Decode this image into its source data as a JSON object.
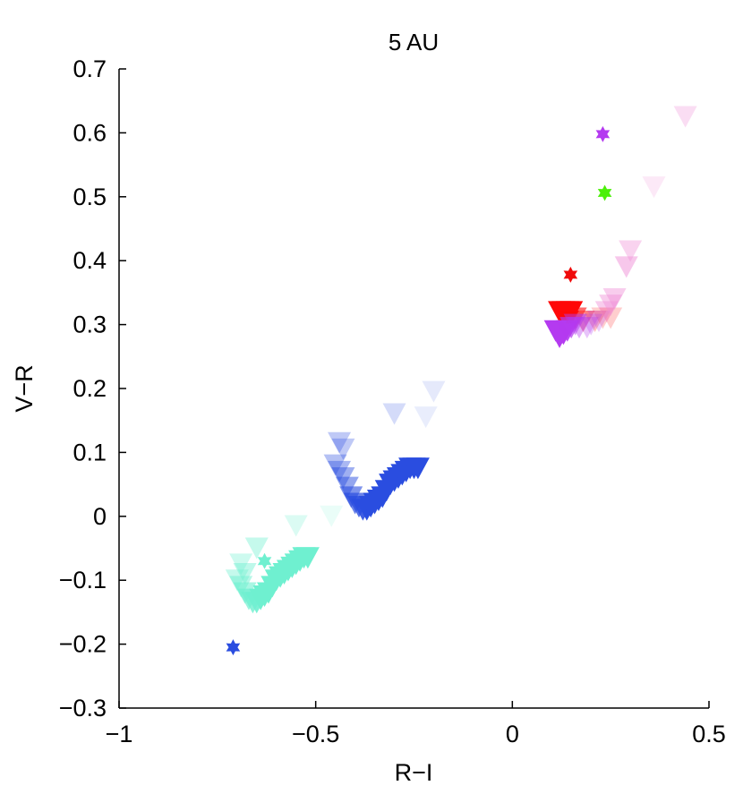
{
  "chart_data": {
    "type": "scatter",
    "title": "5 AU",
    "xlabel": "R−I",
    "ylabel": "V−R",
    "xlim": [
      -1,
      0.5
    ],
    "ylim": [
      -0.3,
      0.7
    ],
    "xticks": [
      -1,
      -0.5,
      0,
      0.5
    ],
    "xtick_labels": [
      "−1",
      "−0.5",
      "0",
      "0.5"
    ],
    "yticks": [
      -0.3,
      -0.2,
      -0.1,
      0,
      0.1,
      0.2,
      0.3,
      0.4,
      0.5,
      0.6,
      0.7
    ],
    "ytick_labels": [
      "−0.3",
      "−0.2",
      "−0.1",
      "0",
      "0.1",
      "0.2",
      "0.3",
      "0.4",
      "0.5",
      "0.6",
      "0.7"
    ],
    "grid": false,
    "series": [
      {
        "marker": "triangle-down",
        "color": "#2a4de0",
        "points": [
          {
            "x": -0.44,
            "y": 0.115,
            "a": 0.3
          },
          {
            "x": -0.43,
            "y": 0.105,
            "a": 0.3
          },
          {
            "x": -0.45,
            "y": 0.08,
            "a": 0.35
          },
          {
            "x": -0.44,
            "y": 0.07,
            "a": 0.4
          },
          {
            "x": -0.43,
            "y": 0.06,
            "a": 0.45
          },
          {
            "x": -0.42,
            "y": 0.045,
            "a": 0.5
          },
          {
            "x": -0.41,
            "y": 0.03,
            "a": 0.6
          },
          {
            "x": -0.4,
            "y": 0.02,
            "a": 0.7
          },
          {
            "x": -0.39,
            "y": 0.015,
            "a": 0.8
          },
          {
            "x": -0.38,
            "y": 0.01,
            "a": 0.9
          },
          {
            "x": -0.37,
            "y": 0.01,
            "a": 1
          },
          {
            "x": -0.36,
            "y": 0.015,
            "a": 1
          },
          {
            "x": -0.35,
            "y": 0.02,
            "a": 1
          },
          {
            "x": -0.34,
            "y": 0.025,
            "a": 1
          },
          {
            "x": -0.33,
            "y": 0.03,
            "a": 1
          },
          {
            "x": -0.32,
            "y": 0.04,
            "a": 1
          },
          {
            "x": -0.31,
            "y": 0.05,
            "a": 1
          },
          {
            "x": -0.3,
            "y": 0.055,
            "a": 1
          },
          {
            "x": -0.29,
            "y": 0.06,
            "a": 1
          },
          {
            "x": -0.28,
            "y": 0.065,
            "a": 1
          },
          {
            "x": -0.27,
            "y": 0.07,
            "a": 1
          },
          {
            "x": -0.26,
            "y": 0.075,
            "a": 1
          },
          {
            "x": -0.25,
            "y": 0.075,
            "a": 1
          },
          {
            "x": -0.24,
            "y": 0.075,
            "a": 1
          },
          {
            "x": -0.3,
            "y": 0.16,
            "a": 0.2
          },
          {
            "x": -0.22,
            "y": 0.155,
            "a": 0.1
          },
          {
            "x": -0.2,
            "y": 0.195,
            "a": 0.12
          }
        ]
      },
      {
        "marker": "triangle-down",
        "color": "#6ff0d0",
        "points": [
          {
            "x": -0.65,
            "y": -0.05,
            "a": 0.4
          },
          {
            "x": -0.69,
            "y": -0.075,
            "a": 0.35
          },
          {
            "x": -0.68,
            "y": -0.09,
            "a": 0.45
          },
          {
            "x": -0.7,
            "y": -0.1,
            "a": 0.4
          },
          {
            "x": -0.69,
            "y": -0.11,
            "a": 0.5
          },
          {
            "x": -0.68,
            "y": -0.12,
            "a": 0.6
          },
          {
            "x": -0.67,
            "y": -0.13,
            "a": 0.7
          },
          {
            "x": -0.66,
            "y": -0.135,
            "a": 0.8
          },
          {
            "x": -0.65,
            "y": -0.135,
            "a": 0.9
          },
          {
            "x": -0.64,
            "y": -0.13,
            "a": 1
          },
          {
            "x": -0.63,
            "y": -0.125,
            "a": 1
          },
          {
            "x": -0.62,
            "y": -0.12,
            "a": 1
          },
          {
            "x": -0.61,
            "y": -0.11,
            "a": 1
          },
          {
            "x": -0.6,
            "y": -0.1,
            "a": 1
          },
          {
            "x": -0.59,
            "y": -0.095,
            "a": 1
          },
          {
            "x": -0.58,
            "y": -0.09,
            "a": 1
          },
          {
            "x": -0.57,
            "y": -0.085,
            "a": 1
          },
          {
            "x": -0.56,
            "y": -0.08,
            "a": 1
          },
          {
            "x": -0.55,
            "y": -0.075,
            "a": 1
          },
          {
            "x": -0.54,
            "y": -0.07,
            "a": 1
          },
          {
            "x": -0.53,
            "y": -0.065,
            "a": 1
          },
          {
            "x": -0.52,
            "y": -0.065,
            "a": 1
          },
          {
            "x": -0.55,
            "y": -0.015,
            "a": 0.25
          },
          {
            "x": -0.46,
            "y": 0.0,
            "a": 0.15
          }
        ]
      },
      {
        "marker": "triangle-down",
        "color": "#ff0808",
        "points": [
          {
            "x": 0.12,
            "y": 0.32,
            "a": 1
          },
          {
            "x": 0.13,
            "y": 0.32,
            "a": 1
          },
          {
            "x": 0.14,
            "y": 0.32,
            "a": 1
          },
          {
            "x": 0.15,
            "y": 0.32,
            "a": 1
          },
          {
            "x": 0.13,
            "y": 0.31,
            "a": 1
          },
          {
            "x": 0.14,
            "y": 0.305,
            "a": 0.9
          },
          {
            "x": 0.16,
            "y": 0.31,
            "a": 0.6
          },
          {
            "x": 0.18,
            "y": 0.305,
            "a": 0.35
          },
          {
            "x": 0.21,
            "y": 0.305,
            "a": 0.25
          },
          {
            "x": 0.23,
            "y": 0.31,
            "a": 0.2
          },
          {
            "x": 0.25,
            "y": 0.31,
            "a": 0.2
          }
        ]
      },
      {
        "marker": "triangle-down",
        "color": "#b43af0",
        "points": [
          {
            "x": 0.11,
            "y": 0.29,
            "a": 1
          },
          {
            "x": 0.12,
            "y": 0.28,
            "a": 1
          },
          {
            "x": 0.13,
            "y": 0.285,
            "a": 1
          },
          {
            "x": 0.14,
            "y": 0.29,
            "a": 0.9
          },
          {
            "x": 0.15,
            "y": 0.295,
            "a": 0.7
          },
          {
            "x": 0.16,
            "y": 0.3,
            "a": 0.5
          },
          {
            "x": 0.17,
            "y": 0.295,
            "a": 0.4
          },
          {
            "x": 0.19,
            "y": 0.295,
            "a": 0.3
          },
          {
            "x": 0.2,
            "y": 0.3,
            "a": 0.28
          },
          {
            "x": 0.22,
            "y": 0.305,
            "a": 0.25
          }
        ]
      },
      {
        "marker": "triangle-down",
        "color": "#f090d8",
        "points": [
          {
            "x": 0.24,
            "y": 0.32,
            "a": 0.45
          },
          {
            "x": 0.25,
            "y": 0.33,
            "a": 0.45
          },
          {
            "x": 0.26,
            "y": 0.34,
            "a": 0.45
          },
          {
            "x": 0.29,
            "y": 0.39,
            "a": 0.5
          },
          {
            "x": 0.3,
            "y": 0.415,
            "a": 0.4
          },
          {
            "x": 0.36,
            "y": 0.515,
            "a": 0.2
          },
          {
            "x": 0.44,
            "y": 0.625,
            "a": 0.3
          }
        ]
      },
      {
        "marker": "star",
        "points": [
          {
            "x": 0.23,
            "y": 0.598,
            "color": "#b43af0"
          },
          {
            "x": 0.235,
            "y": 0.506,
            "color": "#4cf00a"
          },
          {
            "x": 0.148,
            "y": 0.378,
            "color": "#f00a0a"
          },
          {
            "x": -0.63,
            "y": -0.07,
            "color": "#6ff0d0"
          },
          {
            "x": -0.71,
            "y": -0.205,
            "color": "#2a4de0"
          }
        ]
      }
    ]
  }
}
